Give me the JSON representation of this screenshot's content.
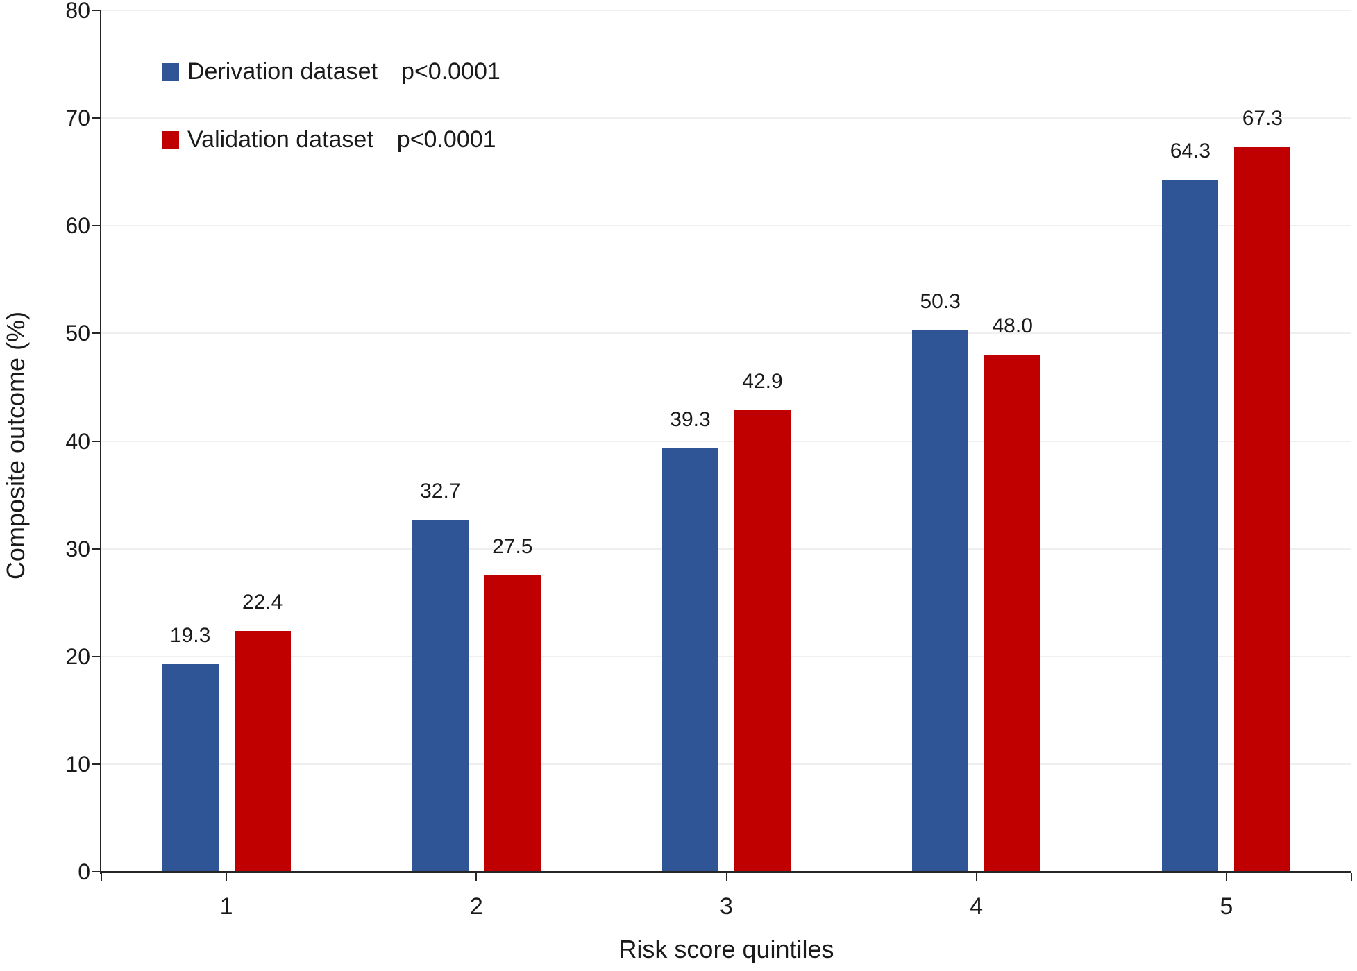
{
  "chart_data": {
    "type": "bar",
    "title": "",
    "categories": [
      "1",
      "2",
      "3",
      "4",
      "5"
    ],
    "series": [
      {
        "name": "Derivation dataset",
        "p_value": "p<0.0001",
        "color": "#2F5597",
        "values": [
          19.3,
          32.7,
          39.3,
          50.3,
          64.3
        ]
      },
      {
        "name": "Validation dataset",
        "p_value": "p<0.0001",
        "color": "#C00000",
        "values": [
          22.4,
          27.5,
          42.9,
          48.0,
          67.3
        ]
      }
    ],
    "xlabel": "Risk score quintiles",
    "ylabel": "Composite outcome (%)",
    "ylim": [
      0,
      80
    ],
    "ytick_step": 10,
    "y_ticks": [
      0,
      10,
      20,
      30,
      40,
      50,
      60,
      70,
      80
    ],
    "value_decimals": 1,
    "grid": true,
    "legend_position": "top-left",
    "axis_color": "#262626",
    "gridline_color": "#efefef",
    "background_color": "#ffffff"
  }
}
